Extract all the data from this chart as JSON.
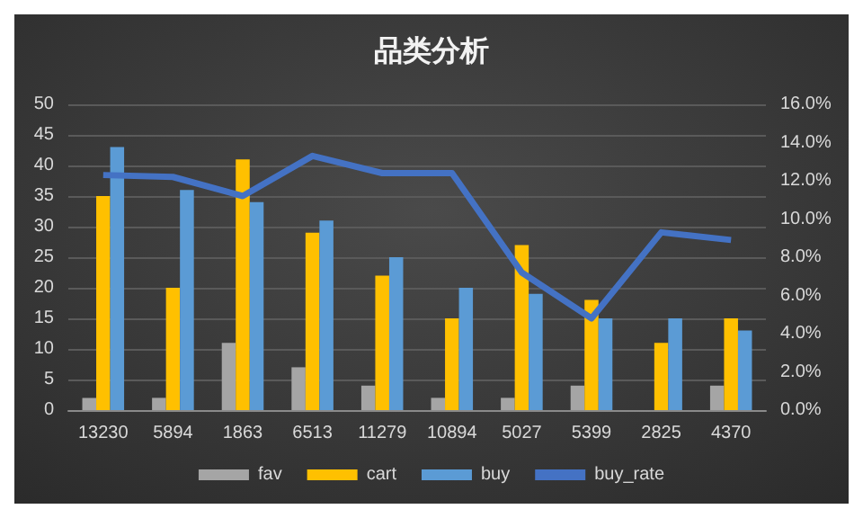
{
  "chart_data": {
    "type": "bar",
    "title": "品类分析",
    "categories": [
      "13230",
      "5894",
      "1863",
      "6513",
      "11279",
      "10894",
      "5027",
      "5399",
      "2825",
      "4370"
    ],
    "series": [
      {
        "name": "fav",
        "color": "#a5a5a5",
        "values": [
          2,
          2,
          11,
          7,
          4,
          2,
          2,
          4,
          0,
          4
        ]
      },
      {
        "name": "cart",
        "color": "#ffc000",
        "values": [
          35,
          20,
          41,
          29,
          22,
          15,
          27,
          18,
          11,
          15
        ]
      },
      {
        "name": "buy",
        "color": "#5b9bd5",
        "values": [
          43,
          36,
          34,
          31,
          25,
          20,
          19,
          15,
          15,
          13
        ]
      },
      {
        "name": "buy_rate",
        "type": "line",
        "axis": "y2",
        "color": "#4472c4",
        "values": [
          12.3,
          12.2,
          11.2,
          13.3,
          12.4,
          12.4,
          7.2,
          4.8,
          9.3,
          8.9
        ]
      }
    ],
    "ylim": [
      0,
      50
    ],
    "yticks": [
      0,
      5,
      10,
      15,
      20,
      25,
      30,
      35,
      40,
      45,
      50
    ],
    "y2lim": [
      0,
      16
    ],
    "y2ticks": [
      {
        "value": 0,
        "label": "0.0%"
      },
      {
        "value": 2,
        "label": "2.0%"
      },
      {
        "value": 4,
        "label": "4.0%"
      },
      {
        "value": 6,
        "label": "6.0%"
      },
      {
        "value": 8,
        "label": "8.0%"
      },
      {
        "value": 10,
        "label": "10.0%"
      },
      {
        "value": 12,
        "label": "12.0%"
      },
      {
        "value": 14,
        "label": "14.0%"
      },
      {
        "value": 16,
        "label": "16.0%"
      }
    ],
    "grid": "y",
    "legend": "bottom",
    "marker": "none"
  }
}
